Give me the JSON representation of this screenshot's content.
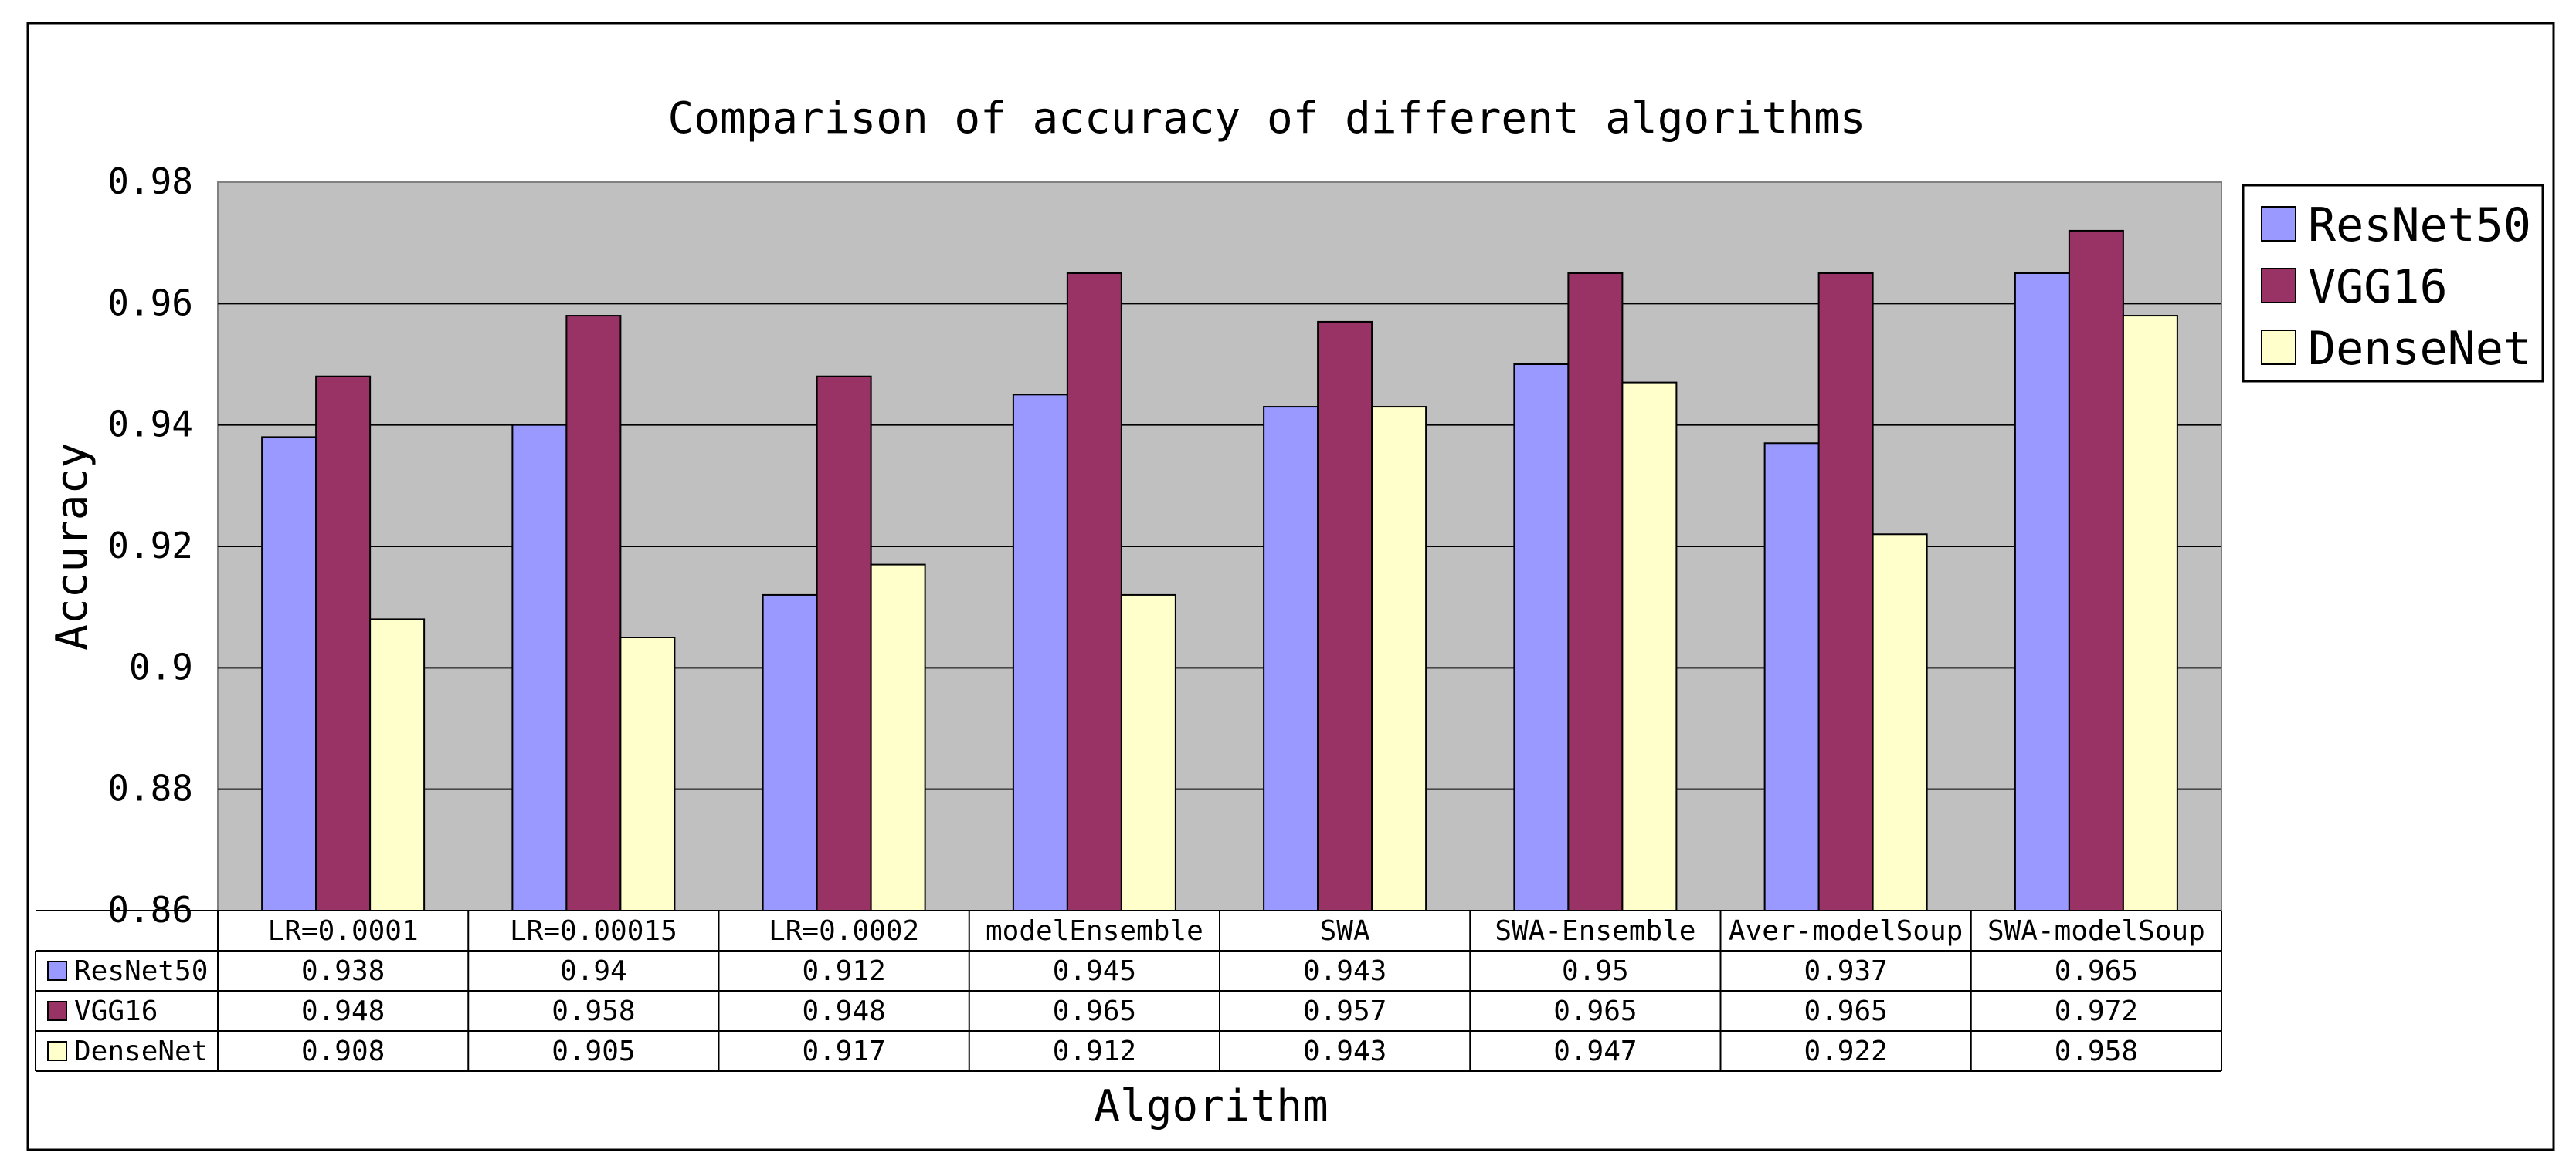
{
  "chart_data": {
    "type": "bar",
    "title": "Comparison of accuracy of different algorithms",
    "xlabel": "Algorithm",
    "ylabel": "Accuracy",
    "ylim": [
      0.86,
      0.98
    ],
    "yticks": [
      0.86,
      0.88,
      0.9,
      0.92,
      0.94,
      0.96,
      0.98
    ],
    "ytick_labels": [
      "0.86",
      "0.88",
      "0.9",
      "0.92",
      "0.94",
      "0.96",
      "0.98"
    ],
    "grid": true,
    "legend_position": "right",
    "categories": [
      "LR=0.0001",
      "LR=0.00015",
      "LR=0.0002",
      "modelEnsemble",
      "SWA",
      "SWA-Ensemble",
      "Aver-modelSoup",
      "SWA-modelSoup"
    ],
    "series": [
      {
        "name": "ResNet50",
        "color": "#9999ff",
        "values": [
          0.938,
          0.94,
          0.912,
          0.945,
          0.943,
          0.95,
          0.937,
          0.965
        ],
        "value_labels": [
          "0.938",
          "0.94",
          "0.912",
          "0.945",
          "0.943",
          "0.95",
          "0.937",
          "0.965"
        ]
      },
      {
        "name": "VGG16",
        "color": "#993366",
        "values": [
          0.948,
          0.958,
          0.948,
          0.965,
          0.957,
          0.965,
          0.965,
          0.972
        ],
        "value_labels": [
          "0.948",
          "0.958",
          "0.948",
          "0.965",
          "0.957",
          "0.965",
          "0.965",
          "0.972"
        ]
      },
      {
        "name": "DenseNet",
        "color": "#ffffcc",
        "values": [
          0.908,
          0.905,
          0.917,
          0.912,
          0.943,
          0.947,
          0.922,
          0.958
        ],
        "value_labels": [
          "0.908",
          "0.905",
          "0.917",
          "0.912",
          "0.943",
          "0.947",
          "0.922",
          "0.958"
        ]
      }
    ],
    "plot_background": "#c0c0c0"
  }
}
